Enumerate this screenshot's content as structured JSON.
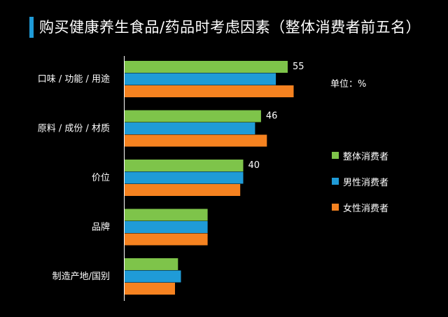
{
  "title": "购买健康养生食品/药品时考虑因素（整体消费者前五名）",
  "unit_label": "单位：%",
  "colors": {
    "overall": "#7ec44a",
    "male": "#1f9bd7",
    "female": "#f58220",
    "axis": "#ffffff"
  },
  "chart_data": {
    "type": "bar",
    "orientation": "horizontal",
    "categories": [
      "口味 / 功能 / 用途",
      "原料 / 成份 / 材质",
      "价位",
      "品牌",
      "制造产地/国别"
    ],
    "series": [
      {
        "name": "整体消费者",
        "values": [
          55,
          46,
          40,
          28,
          18
        ]
      },
      {
        "name": "男性消费者",
        "values": [
          51,
          44,
          40,
          28,
          19
        ]
      },
      {
        "name": "女性消费者",
        "values": [
          57,
          48,
          39,
          28,
          17
        ]
      }
    ],
    "data_labels": [
      "55",
      "46",
      "40"
    ],
    "xlim": [
      0,
      100
    ],
    "legend_position": "right"
  }
}
